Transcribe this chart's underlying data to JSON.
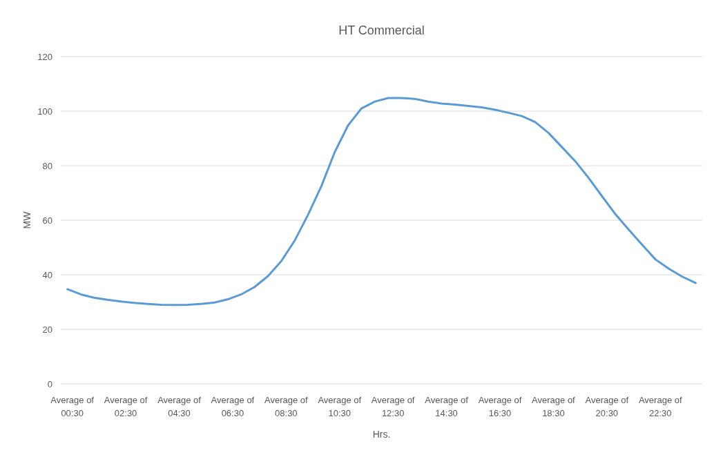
{
  "chart_data": {
    "type": "line",
    "title": "HT Commercial",
    "xlabel": "Hrs.",
    "ylabel": "MW",
    "categories": [
      "Average of 00:30",
      null,
      null,
      null,
      "Average of 02:30",
      null,
      null,
      null,
      "Average of 04:30",
      null,
      null,
      null,
      "Average of 06:30",
      null,
      null,
      null,
      "Average of 08:30",
      null,
      null,
      null,
      "Average of 10:30",
      null,
      null,
      null,
      "Average of 12:30",
      null,
      null,
      null,
      "Average of 14:30",
      null,
      null,
      null,
      "Average of 16:30",
      null,
      null,
      null,
      "Average of 18:30",
      null,
      null,
      null,
      "Average of 20:30",
      null,
      null,
      null,
      "Average of 22:30",
      null,
      null,
      null
    ],
    "series": [
      {
        "color": "#5b9bd5",
        "values": [
          34.7,
          32.8,
          31.6,
          30.8,
          30.2,
          29.7,
          29.3,
          29,
          28.9,
          29,
          29.3,
          29.8,
          31,
          32.8,
          35.5,
          39.5,
          45,
          52.5,
          62,
          72.5,
          85,
          94.8,
          101,
          103.5,
          104.8,
          104.8,
          104.5,
          103.5,
          102.8,
          102.4,
          101.9,
          101.4,
          100.5,
          99.4,
          98.2,
          96,
          92,
          86.8,
          81.6,
          75.5,
          68.8,
          62.2,
          56.5,
          51,
          45.6,
          42.2,
          39.3,
          37
        ]
      }
    ],
    "ylim": [
      0,
      120
    ],
    "yticks": [
      0,
      20,
      40,
      60,
      80,
      100,
      120
    ],
    "grid": "y",
    "marker": "none",
    "line_style": "solid"
  }
}
